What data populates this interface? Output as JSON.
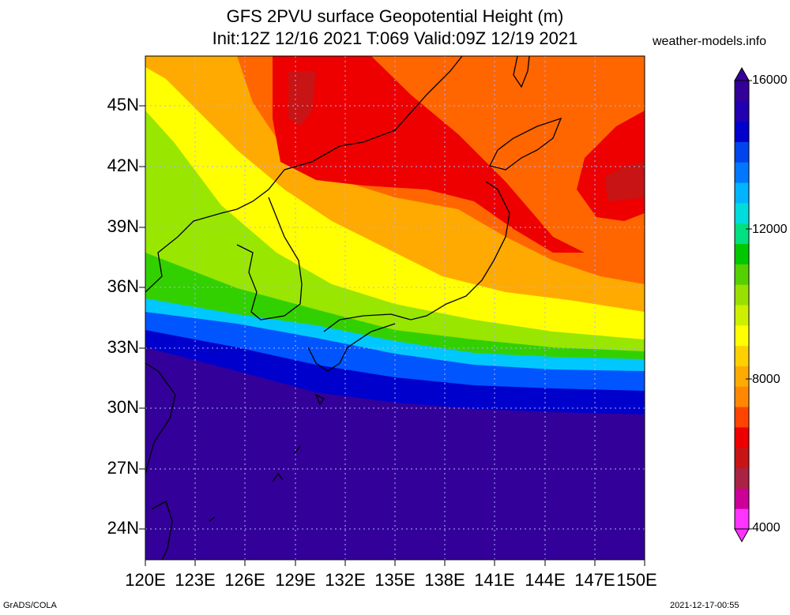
{
  "header": {
    "title_line1": "GFS 2PVU surface Geopotential Height (m)",
    "title_line2": "Init:12Z 12/16 2021 T:069 Valid:09Z 12/19 2021",
    "site": "weather-models.info"
  },
  "axes": {
    "lat_labels": [
      "45N",
      "42N",
      "39N",
      "36N",
      "33N",
      "30N",
      "27N",
      "24N"
    ],
    "lon_labels": [
      "120E",
      "123E",
      "126E",
      "129E",
      "132E",
      "135E",
      "138E",
      "141E",
      "144E",
      "147E",
      "150E"
    ]
  },
  "colorbar": {
    "labels": [
      "16000",
      "12000",
      "8000",
      "4000"
    ],
    "colors": [
      "#ff33ff",
      "#cc0099",
      "#aa2244",
      "#c81414",
      "#ee0000",
      "#ff4400",
      "#ff8800",
      "#ffaa00",
      "#ffd000",
      "#ffff00",
      "#ccf000",
      "#99e000",
      "#55d000",
      "#00c800",
      "#00e080",
      "#00dcdc",
      "#00b4ff",
      "#0077ff",
      "#0044ee",
      "#0000cc",
      "#2200b0",
      "#330099"
    ]
  },
  "map": {
    "field_colors": {
      "deep": "#330099",
      "blue": "#0000cc",
      "blue2": "#0055ff",
      "cyan": "#00c8ff",
      "green": "#33d000",
      "lime": "#99e600",
      "yellow": "#ffff00",
      "orange": "#ffaa00",
      "orange2": "#ff6600",
      "red": "#ee0000",
      "darkred": "#c81414"
    }
  },
  "footer": {
    "left": "GrADS/COLA",
    "right": "2021-12-17-00:55"
  }
}
